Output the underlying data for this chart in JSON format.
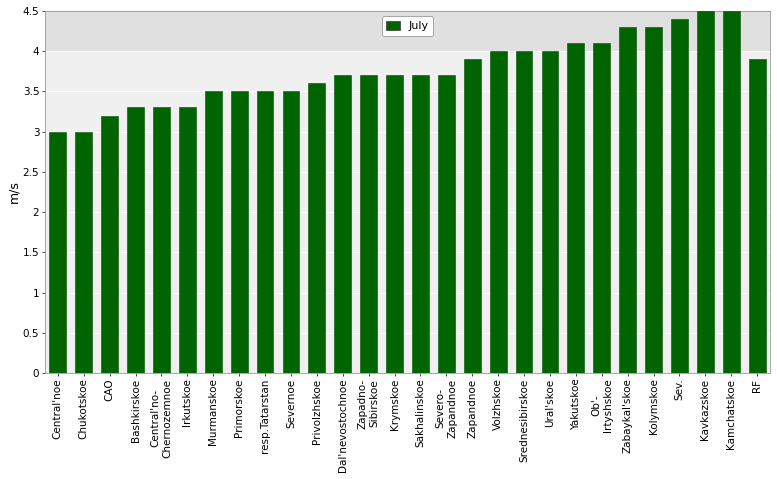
{
  "categories": [
    "Central'noe",
    "Chukotskoe",
    "CAO",
    "Bashkirskoe",
    "Central'no-\nChernozemnoe",
    "Irkutskoe",
    "Murmanskoe",
    "Primorskoe",
    "resp.Tatarstan",
    "Severnoe",
    "Privolzhskoe",
    "Dal'nevostochnoe",
    "Zapadno-\nSibirskoe",
    "Krymskoe",
    "Sakhalinskoe",
    "Severo-\nZapandnoe",
    "Zapandnoe",
    "Volzhskoe",
    "Srednesibirskoe",
    "Ural'skoe",
    "Yakutskoe",
    "Ob'-\nIrtyshskoe",
    "Zabaykal'skoe",
    "Kolymskoe",
    "Sev.",
    "Kavkazskoe",
    "Kamchatskoe",
    "RF"
  ],
  "values": [
    3.0,
    3.0,
    3.2,
    3.3,
    3.3,
    3.3,
    3.5,
    3.5,
    3.5,
    3.5,
    3.6,
    3.7,
    3.7,
    3.7,
    3.7,
    3.7,
    3.9,
    4.0,
    4.0,
    4.0,
    4.1,
    4.1,
    4.3,
    4.3,
    4.4,
    4.5,
    4.5,
    3.9
  ],
  "bar_color": "#006400",
  "bar_edge_color": "#005000",
  "ylabel": "m/s",
  "ylim_max": 4.5,
  "yticks": [
    0,
    0.5,
    1.0,
    1.5,
    2.0,
    2.5,
    3.0,
    3.5,
    4.0,
    4.5
  ],
  "legend_label": "July",
  "legend_color": "#006400",
  "plot_bg_color": "#f0f0f0",
  "upper_bg_color": "#e0e0e0",
  "grid_color": "#ffffff",
  "tick_fontsize": 7.5,
  "ylabel_fontsize": 9,
  "bar_width": 0.65
}
